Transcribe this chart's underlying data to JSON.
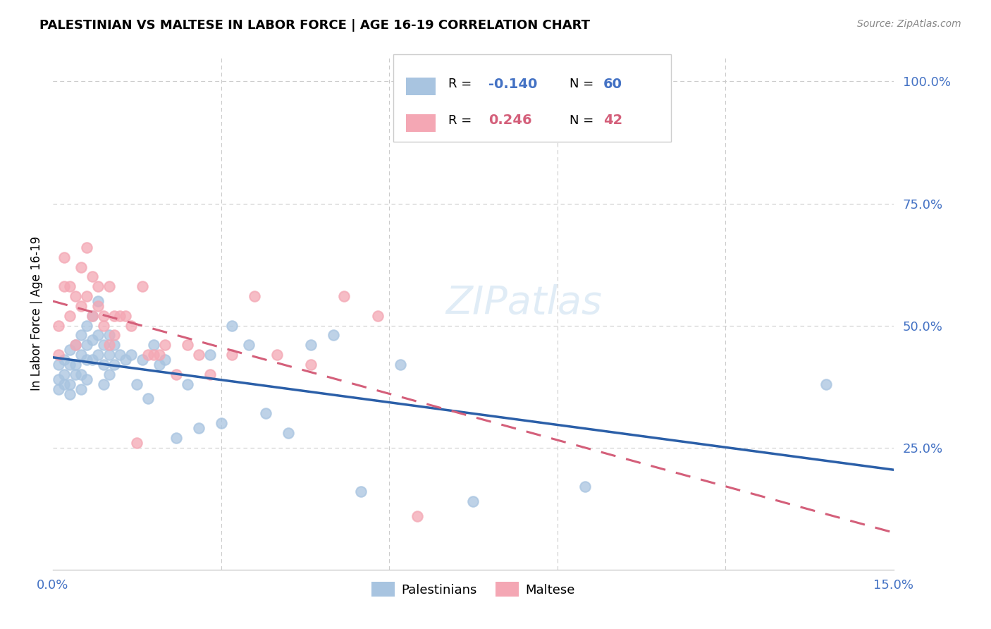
{
  "title": "PALESTINIAN VS MALTESE IN LABOR FORCE | AGE 16-19 CORRELATION CHART",
  "source": "Source: ZipAtlas.com",
  "ylabel": "In Labor Force | Age 16-19",
  "xlim": [
    0.0,
    0.15
  ],
  "ylim": [
    0.0,
    1.05
  ],
  "palestinians_color": "#a8c4e0",
  "maltese_color": "#f4a7b4",
  "palestinians_line_color": "#2b5fa8",
  "maltese_line_color": "#d45f7a",
  "right_tick_color": "#4472c4",
  "R_palestinians": -0.14,
  "N_palestinians": 60,
  "R_maltese": 0.246,
  "N_maltese": 42,
  "palestinians_x": [
    0.001,
    0.001,
    0.001,
    0.002,
    0.002,
    0.002,
    0.003,
    0.003,
    0.003,
    0.003,
    0.004,
    0.004,
    0.004,
    0.005,
    0.005,
    0.005,
    0.005,
    0.006,
    0.006,
    0.006,
    0.006,
    0.007,
    0.007,
    0.007,
    0.008,
    0.008,
    0.008,
    0.009,
    0.009,
    0.009,
    0.01,
    0.01,
    0.01,
    0.011,
    0.011,
    0.012,
    0.013,
    0.014,
    0.015,
    0.016,
    0.017,
    0.018,
    0.019,
    0.02,
    0.022,
    0.024,
    0.026,
    0.028,
    0.03,
    0.032,
    0.035,
    0.038,
    0.042,
    0.046,
    0.05,
    0.055,
    0.062,
    0.075,
    0.095,
    0.138
  ],
  "palestinians_y": [
    0.39,
    0.37,
    0.42,
    0.4,
    0.43,
    0.38,
    0.42,
    0.45,
    0.38,
    0.36,
    0.46,
    0.42,
    0.4,
    0.48,
    0.44,
    0.4,
    0.37,
    0.5,
    0.46,
    0.43,
    0.39,
    0.52,
    0.47,
    0.43,
    0.55,
    0.48,
    0.44,
    0.46,
    0.42,
    0.38,
    0.48,
    0.44,
    0.4,
    0.46,
    0.42,
    0.44,
    0.43,
    0.44,
    0.38,
    0.43,
    0.35,
    0.46,
    0.42,
    0.43,
    0.27,
    0.38,
    0.29,
    0.44,
    0.3,
    0.5,
    0.46,
    0.32,
    0.28,
    0.46,
    0.48,
    0.16,
    0.42,
    0.14,
    0.17,
    0.38
  ],
  "maltese_x": [
    0.001,
    0.001,
    0.002,
    0.002,
    0.003,
    0.003,
    0.004,
    0.004,
    0.005,
    0.005,
    0.006,
    0.006,
    0.007,
    0.007,
    0.008,
    0.008,
    0.009,
    0.009,
    0.01,
    0.01,
    0.011,
    0.011,
    0.012,
    0.013,
    0.014,
    0.015,
    0.016,
    0.017,
    0.018,
    0.019,
    0.02,
    0.022,
    0.024,
    0.026,
    0.028,
    0.032,
    0.036,
    0.04,
    0.046,
    0.052,
    0.058,
    0.065
  ],
  "maltese_y": [
    0.44,
    0.5,
    0.58,
    0.64,
    0.58,
    0.52,
    0.46,
    0.56,
    0.62,
    0.54,
    0.66,
    0.56,
    0.6,
    0.52,
    0.58,
    0.54,
    0.5,
    0.52,
    0.58,
    0.46,
    0.52,
    0.48,
    0.52,
    0.52,
    0.5,
    0.26,
    0.58,
    0.44,
    0.44,
    0.44,
    0.46,
    0.4,
    0.46,
    0.44,
    0.4,
    0.44,
    0.56,
    0.44,
    0.42,
    0.56,
    0.52,
    0.11
  ],
  "grid_color": "#cccccc",
  "spine_color": "#cccccc"
}
